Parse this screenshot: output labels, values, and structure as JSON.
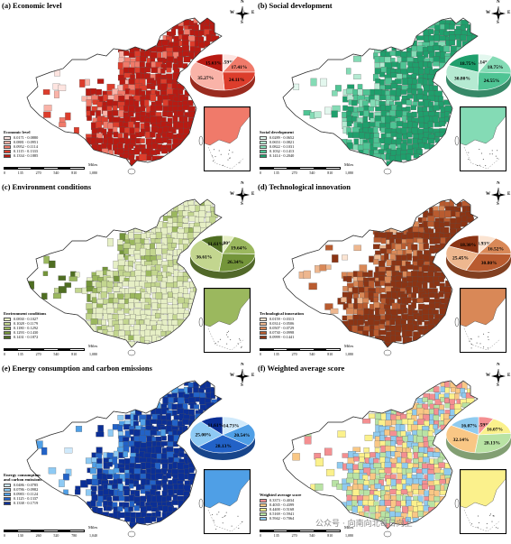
{
  "panels": [
    {
      "title": "(a) Economic level",
      "legend_title": "Economic level",
      "classes": [
        "0.0171 - 0.0880",
        "0.0881 - 0.0951",
        "0.0952 - 0.1114",
        "0.1115 - 0.1333",
        "0.1334 - 0.1885"
      ],
      "colors": [
        "#fde4e0",
        "#f9b3a8",
        "#f07a6a",
        "#dc3d2c",
        "#b81a12"
      ],
      "pie": {
        "values": [
          7.59,
          17.41,
          24.11,
          35.27,
          15.63
        ],
        "labels": [
          "7.59%",
          "17.41%",
          "24.11%",
          "35.27%",
          "15.63%"
        ]
      },
      "scale_labels": [
        "0",
        "135",
        "270",
        "540",
        "810",
        "1,080"
      ]
    },
    {
      "title": "(b) Social development",
      "legend_title": "Social development",
      "classes": [
        "0.0289 - 0.0652",
        "0.0653 - 0.0821",
        "0.0822 - 0.1031",
        "0.1032 - 0.1413",
        "0.1414 - 0.2040"
      ],
      "colors": [
        "#e3f7ee",
        "#b5ead2",
        "#84dbb5",
        "#4fc494",
        "#1f9f6c"
      ],
      "pie": {
        "values": [
          7.14,
          18.75,
          24.55,
          30.8,
          18.75
        ],
        "labels": [
          "7.14%",
          "18.75%",
          "24.55%",
          "30.80%",
          "18.75%"
        ]
      },
      "scale_labels": [
        "0",
        "135",
        "270",
        "540",
        "810",
        "1,080"
      ]
    },
    {
      "title": "(c) Environment conditions",
      "legend_title": "Environment conditions",
      "classes": [
        "0.0830 - 0.1027",
        "0.1028 - 0.1179",
        "0.1180 - 0.1292",
        "0.1293 - 0.1430",
        "0.1431 - 0.1872"
      ],
      "colors": [
        "#e6efc5",
        "#c3d68f",
        "#9bb85e",
        "#74953a",
        "#4f6e22"
      ],
      "pie": {
        "values": [
          5.8,
          19.64,
          26.34,
          36.61,
          11.61
        ],
        "labels": [
          "5.80%",
          "19.64%",
          "26.34%",
          "36.61%",
          "11.61%"
        ]
      },
      "scale_labels": [
        "0",
        "135",
        "270",
        "540",
        "810",
        "1,080"
      ]
    },
    {
      "title": "(d) Technological innovation",
      "legend_title": "Technological innovation",
      "classes": [
        "0.0159 - 0.0313",
        "0.0314 - 0.0506",
        "0.0507 - 0.0729",
        "0.0730 - 0.0998",
        "0.0999 - 0.1441"
      ],
      "colors": [
        "#fbe4d2",
        "#eeb78f",
        "#d98857",
        "#b95b2f",
        "#8b3414"
      ],
      "pie": {
        "values": [
          8.93,
          16.52,
          30.8,
          25.45,
          18.3
        ],
        "labels": [
          "8.93%",
          "16.52%",
          "30.80%",
          "25.45%",
          "18.30%"
        ]
      },
      "scale_labels": [
        "0",
        "135",
        "270",
        "540",
        "810",
        "1,080"
      ]
    },
    {
      "title": "(e) Energy consumption and carbon emissions",
      "legend_title": "Energy consumption and carbon emissions",
      "classes": [
        "0.0486 - 0.0785",
        "0.0786 - 0.0982",
        "0.0983 - 0.1124",
        "0.1125 - 0.1337",
        "0.1338 - 0.1719"
      ],
      "colors": [
        "#cfe9fb",
        "#8ecaf4",
        "#4f9fe6",
        "#2262c7",
        "#0b2f96"
      ],
      "pie": {
        "values": [
          14.73,
          20.54,
          28.13,
          25.0,
          11.61
        ],
        "labels": [
          "14.73%",
          "20.54%",
          "28.13%",
          "25.00%",
          "11.61%"
        ]
      },
      "scale_labels": [
        "0",
        "130",
        "260",
        "520",
        "780",
        "1,040"
      ]
    },
    {
      "title": "(f) Weighted average score",
      "legend_title": "Weighted average score",
      "classes": [
        "0.3373 - 0.4034",
        "0.4035 - 0.4399",
        "0.4400 - 0.5168",
        "0.5169 - 0.5941",
        "0.5942 - 0.7064"
      ],
      "colors": [
        "#f48f91",
        "#f9c785",
        "#fbf18c",
        "#b9e3a4",
        "#8fcbef"
      ],
      "pie": {
        "values": [
          7.59,
          16.07,
          28.13,
          32.14,
          16.07
        ],
        "labels": [
          "7.59%",
          "16.07%",
          "28.13%",
          "32.14%",
          "16.07%"
        ]
      },
      "scale_labels": [
        "0",
        "135",
        "270",
        "540",
        "810",
        "1,080"
      ]
    }
  ],
  "compass": {
    "n": "N",
    "s": "S",
    "e": "E",
    "w": "W"
  },
  "scale_unit": "Miles",
  "watermark": "公众号 · 向南向北每日向上"
}
